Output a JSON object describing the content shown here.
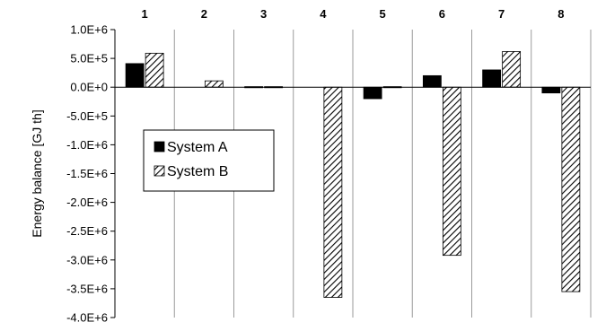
{
  "chart_data": {
    "type": "bar",
    "categories": [
      "1",
      "2",
      "3",
      "4",
      "5",
      "6",
      "7",
      "8"
    ],
    "series": [
      {
        "name": "System A",
        "values": [
          410000,
          0,
          10000,
          0,
          -200000,
          200000,
          300000,
          -100000
        ],
        "color": "#000000",
        "pattern": "solid"
      },
      {
        "name": "System B",
        "values": [
          590000,
          110000,
          10000,
          -3650000,
          10000,
          -2920000,
          620000,
          -3550000
        ],
        "color": "#ffffff",
        "pattern": "diagonal-hatch"
      }
    ],
    "ylabel": "Energy balance   [GJ th]",
    "ylim": [
      -4000000,
      1000000
    ],
    "ytick_labels": [
      "1.0E+6",
      "5.0E+5",
      "0.0E+0",
      "-5.0E+5",
      "-1.0E+6",
      "-1.5E+6",
      "-2.0E+6",
      "-2.5E+6",
      "-3.0E+6",
      "-3.5E+6",
      "-4.0E+6"
    ],
    "xtick_position": "top",
    "grid": "vertical",
    "legend_position": "left-middle"
  }
}
